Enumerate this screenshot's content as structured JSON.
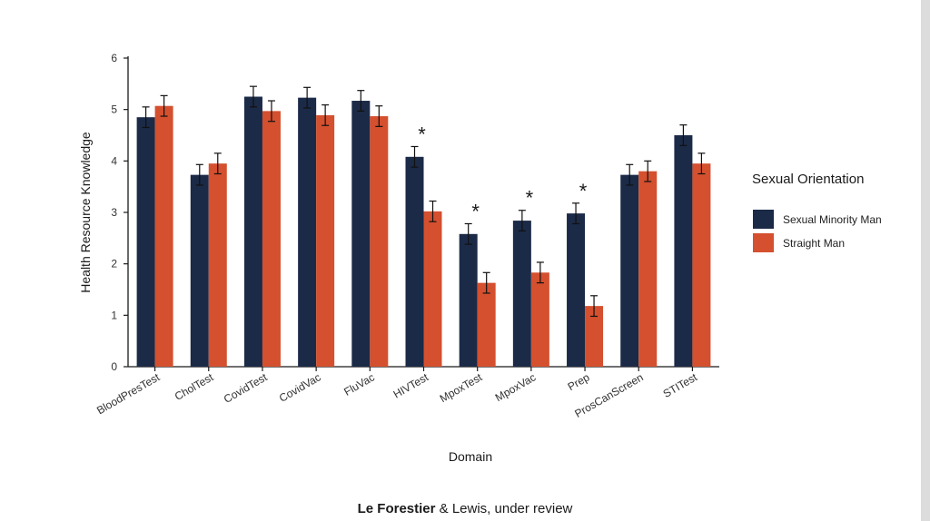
{
  "colors": {
    "sexual_minority": "#1b2a47",
    "straight": "#d4502f",
    "axis": "#1a1a1a"
  },
  "chart_data": {
    "type": "bar",
    "title": "",
    "xlabel": "Domain",
    "ylabel": "Health Resource Knowledge",
    "ylim": [
      0,
      6
    ],
    "yticks": [
      "0",
      "1",
      "2",
      "3",
      "4",
      "5",
      "6"
    ],
    "grid": false,
    "legend_position": "right",
    "legend_title": "Sexual Orientation",
    "categories": [
      "BloodPresTest",
      "CholTest",
      "CovidTest",
      "CovidVac",
      "FluVac",
      "HIVTest",
      "MpoxTest",
      "MpoxVac",
      "Prep",
      "ProsCanScreen",
      "STITest"
    ],
    "series": [
      {
        "name": "Sexual Minority Man",
        "values": [
          4.85,
          3.73,
          5.25,
          5.23,
          5.17,
          4.08,
          2.58,
          2.84,
          2.98,
          3.73,
          4.5
        ],
        "error": [
          0.2,
          0.2,
          0.2,
          0.2,
          0.2,
          0.2,
          0.2,
          0.2,
          0.2,
          0.2,
          0.2
        ]
      },
      {
        "name": "Straight Man",
        "values": [
          5.07,
          3.95,
          4.97,
          4.89,
          4.87,
          3.02,
          1.63,
          1.83,
          1.18,
          3.8,
          3.95
        ],
        "error": [
          0.2,
          0.2,
          0.2,
          0.2,
          0.2,
          0.2,
          0.2,
          0.2,
          0.2,
          0.2,
          0.2
        ]
      }
    ],
    "significance_marker": "*",
    "significant_categories": [
      "HIVTest",
      "MpoxTest",
      "MpoxVac",
      "Prep"
    ]
  },
  "caption": {
    "authors": "Le Forestier",
    "rest": " & Lewis, under review"
  }
}
